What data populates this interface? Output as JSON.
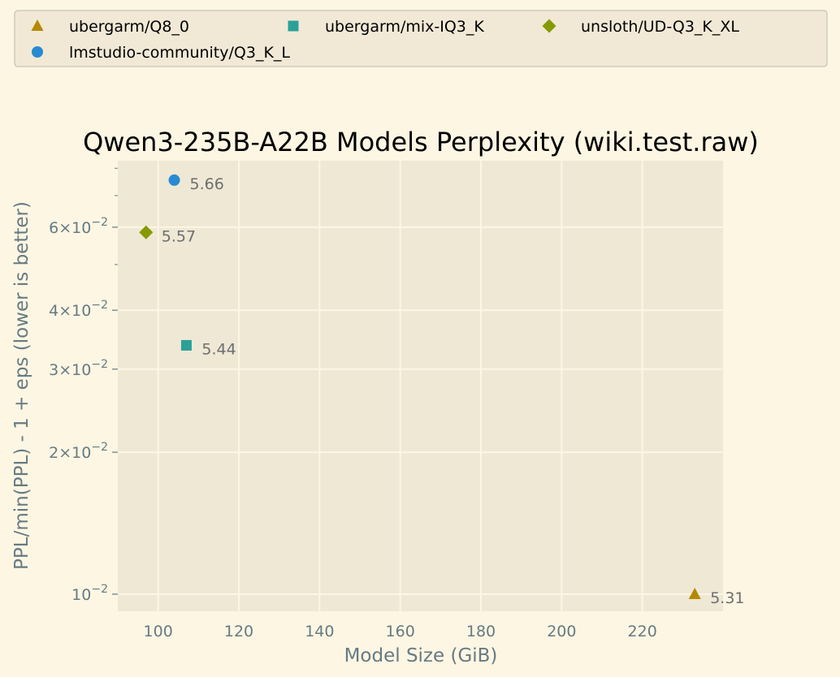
{
  "chart_data": {
    "type": "scatter",
    "title": "Qwen3-235B-A22B Models Perplexity (wiki.test.raw)",
    "xlabel": "Model Size (GiB)",
    "ylabel": "PPL/min(PPL) - 1 + eps (lower is better)",
    "xlim": [
      90,
      240
    ],
    "ylim": [
      0.0092,
      0.083
    ],
    "yscale": "log",
    "x_ticks": [
      100,
      120,
      140,
      160,
      180,
      200,
      220
    ],
    "y_ticks": [
      {
        "value": 0.01,
        "mantissa": "",
        "exponent": "−2"
      },
      {
        "value": 0.02,
        "mantissa": "2",
        "exponent": "−2"
      },
      {
        "value": 0.03,
        "mantissa": "3",
        "exponent": "−2"
      },
      {
        "value": 0.04,
        "mantissa": "4",
        "exponent": "−2"
      },
      {
        "value": 0.06,
        "mantissa": "6",
        "exponent": "−2"
      }
    ],
    "y_minor_ticks": [
      0.05,
      0.07,
      0.08
    ],
    "grid": true,
    "legend_position": "top",
    "series": [
      {
        "name": "ubergarm/Q8_0",
        "marker": "triangle",
        "color": "#b58900",
        "x": 233,
        "y": 0.01,
        "label": "5.31"
      },
      {
        "name": "ubergarm/mix-IQ3_K",
        "marker": "square",
        "color": "#2aa198",
        "x": 107,
        "y": 0.0337,
        "label": "5.44"
      },
      {
        "name": "unsloth/UD-Q3_K_XL",
        "marker": "diamond",
        "color": "#859900",
        "x": 97,
        "y": 0.0585,
        "label": "5.57"
      },
      {
        "name": "lmstudio-community/Q3_K_L",
        "marker": "circle",
        "color": "#268bd2",
        "x": 104,
        "y": 0.0755,
        "label": "5.66"
      }
    ]
  }
}
